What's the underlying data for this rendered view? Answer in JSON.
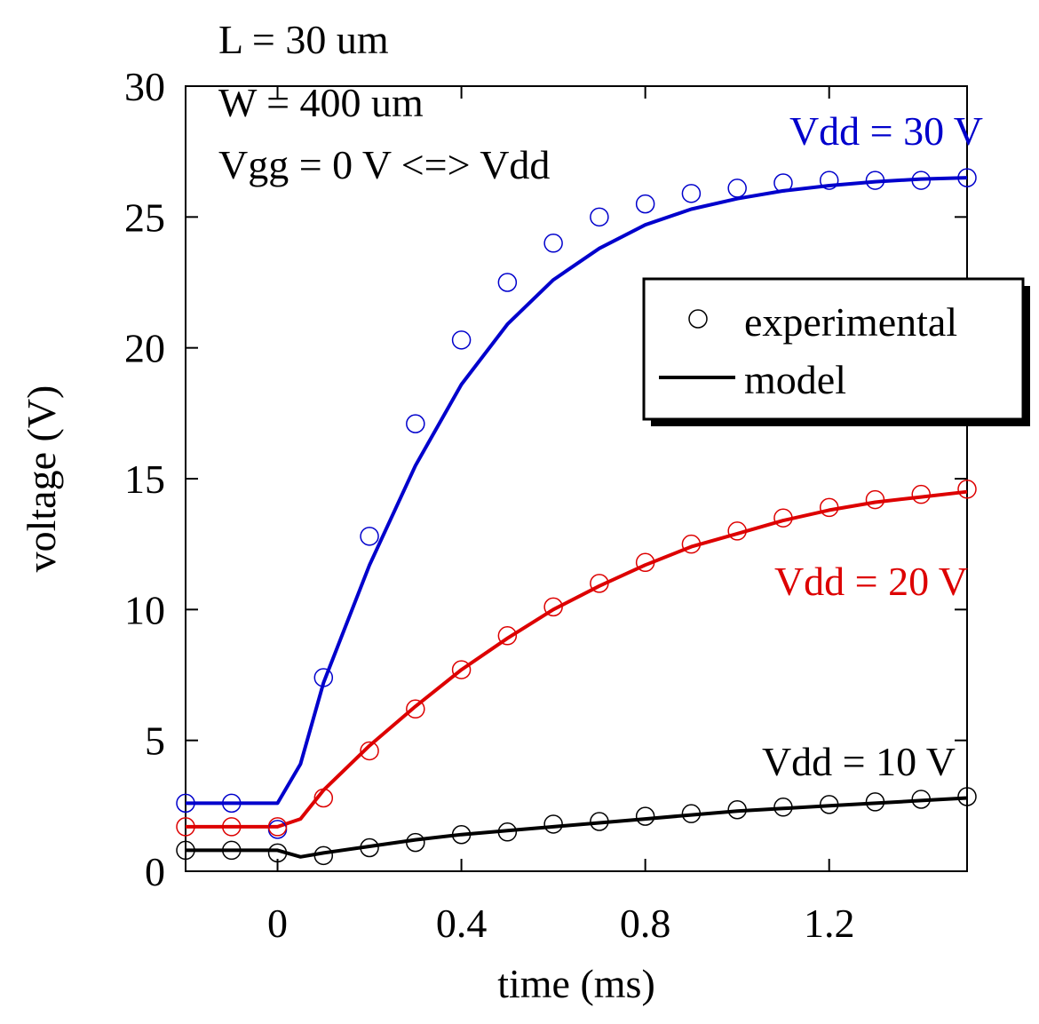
{
  "chart_data": {
    "type": "line",
    "xlabel": "time (ms)",
    "ylabel": "voltage (V)",
    "xlim": [
      -0.2,
      1.5
    ],
    "ylim": [
      0,
      30
    ],
    "xticks": [
      0,
      0.4,
      0.8,
      1.2
    ],
    "xtick_labels": [
      "0",
      "0.4",
      "0.8",
      "1.2"
    ],
    "yticks": [
      0,
      5,
      10,
      15,
      20,
      25,
      30
    ],
    "ytick_labels": [
      "0",
      "5",
      "10",
      "15",
      "20",
      "25",
      "30"
    ],
    "annotations": [
      "L = 30 um",
      "W = 400 um",
      "Vgg = 0 V <=> Vdd"
    ],
    "legend": {
      "position": "right",
      "entries": [
        {
          "label": "experimental",
          "marker": "circle"
        },
        {
          "label": "model",
          "marker": "line"
        }
      ]
    },
    "series": [
      {
        "name": "Vdd = 30 V",
        "color": "#0000cc",
        "experimental": {
          "x": [
            -0.2,
            -0.1,
            0,
            0.1,
            0.2,
            0.3,
            0.4,
            0.5,
            0.6,
            0.7,
            0.8,
            0.9,
            1.0,
            1.1,
            1.2,
            1.3,
            1.4,
            1.5
          ],
          "y": [
            2.6,
            2.6,
            1.6,
            7.4,
            12.8,
            17.1,
            20.3,
            22.5,
            24.0,
            25.0,
            25.5,
            25.9,
            26.1,
            26.3,
            26.4,
            26.4,
            26.4,
            26.5
          ]
        },
        "model": {
          "x": [
            -0.2,
            0,
            0.05,
            0.1,
            0.2,
            0.3,
            0.4,
            0.5,
            0.6,
            0.7,
            0.8,
            0.9,
            1.0,
            1.1,
            1.2,
            1.3,
            1.4,
            1.5
          ],
          "y": [
            2.6,
            2.6,
            4.1,
            7.2,
            11.7,
            15.5,
            18.6,
            20.9,
            22.6,
            23.8,
            24.7,
            25.3,
            25.7,
            26.0,
            26.2,
            26.35,
            26.45,
            26.5
          ]
        }
      },
      {
        "name": "Vdd = 20 V",
        "color": "#dd0000",
        "experimental": {
          "x": [
            -0.2,
            -0.1,
            0,
            0.1,
            0.2,
            0.3,
            0.4,
            0.5,
            0.6,
            0.7,
            0.8,
            0.9,
            1.0,
            1.1,
            1.2,
            1.3,
            1.4,
            1.5
          ],
          "y": [
            1.7,
            1.7,
            1.7,
            2.8,
            4.6,
            6.2,
            7.7,
            9.0,
            10.1,
            11.0,
            11.8,
            12.5,
            13.0,
            13.5,
            13.9,
            14.2,
            14.4,
            14.6
          ]
        },
        "model": {
          "x": [
            -0.2,
            0,
            0.05,
            0.1,
            0.2,
            0.3,
            0.4,
            0.5,
            0.6,
            0.7,
            0.8,
            0.9,
            1.0,
            1.1,
            1.2,
            1.3,
            1.4,
            1.5
          ],
          "y": [
            1.7,
            1.7,
            2.0,
            3.1,
            4.8,
            6.3,
            7.7,
            8.9,
            10.0,
            10.9,
            11.7,
            12.4,
            12.9,
            13.4,
            13.8,
            14.1,
            14.3,
            14.5
          ]
        }
      },
      {
        "name": "Vdd = 10 V",
        "color": "#000000",
        "experimental": {
          "x": [
            -0.2,
            -0.1,
            0,
            0.1,
            0.2,
            0.3,
            0.4,
            0.5,
            0.6,
            0.7,
            0.8,
            0.9,
            1.0,
            1.1,
            1.2,
            1.3,
            1.4,
            1.5
          ],
          "y": [
            0.8,
            0.8,
            0.7,
            0.6,
            0.9,
            1.1,
            1.4,
            1.5,
            1.8,
            1.9,
            2.1,
            2.2,
            2.35,
            2.45,
            2.55,
            2.65,
            2.75,
            2.85
          ]
        },
        "model": {
          "x": [
            -0.2,
            0,
            0.05,
            0.1,
            0.2,
            0.3,
            0.4,
            0.5,
            0.6,
            0.7,
            0.8,
            0.9,
            1.0,
            1.1,
            1.2,
            1.3,
            1.4,
            1.5
          ],
          "y": [
            0.8,
            0.8,
            0.55,
            0.7,
            0.95,
            1.2,
            1.4,
            1.55,
            1.7,
            1.85,
            2.0,
            2.15,
            2.3,
            2.4,
            2.5,
            2.6,
            2.7,
            2.8
          ]
        }
      }
    ],
    "series_labels": [
      "Vdd = 30 V",
      "Vdd = 20 V",
      "Vdd = 10 V"
    ],
    "grid": false
  }
}
